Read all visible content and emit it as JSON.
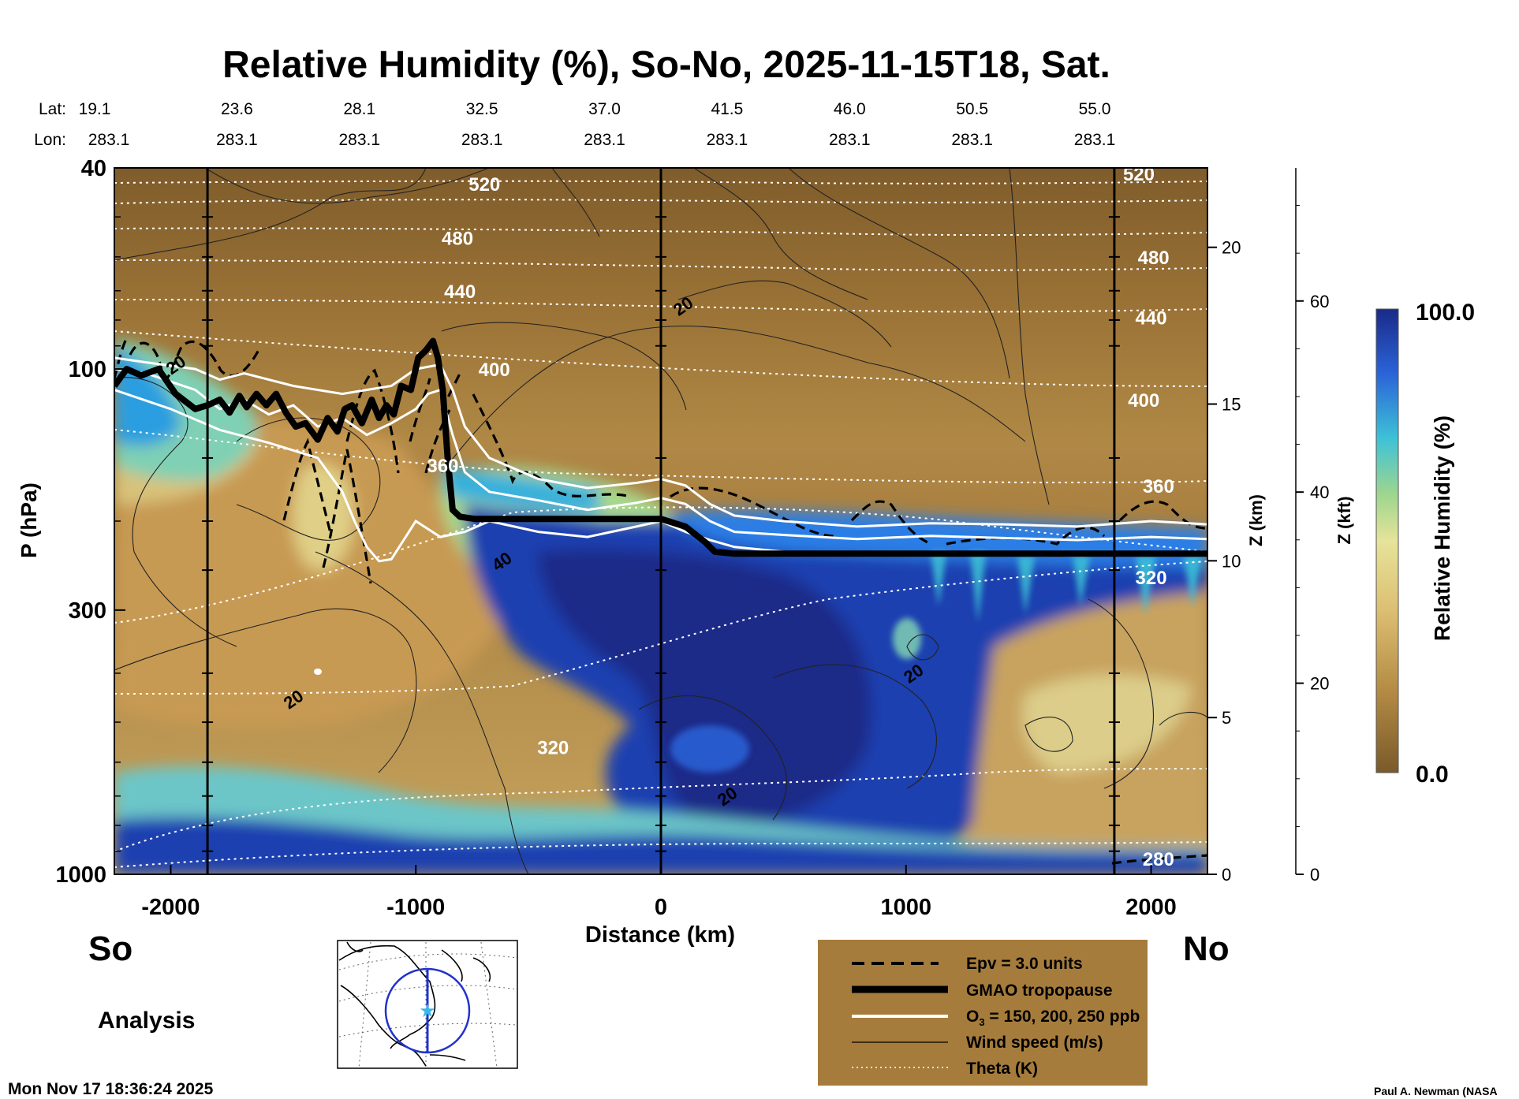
{
  "chart_data": {
    "type": "heatmap",
    "title": "Relative Humidity (%), So-No, 2025-11-15T18, Sat.",
    "xlabel": "Distance (km)",
    "ylabel": "P (hPa)",
    "right_axis_km_label": "Z (km)",
    "right_axis_kft_label": "Z (kft)",
    "colorbar_label": "Relative Humidity (%)",
    "colorbar_max_label": "100.0",
    "colorbar_min_label": "0.0",
    "xlim": [
      -2230,
      2230
    ],
    "ylim": [
      1000,
      40
    ],
    "x_ticks": [
      -2000,
      -1000,
      0,
      1000,
      2000
    ],
    "x_tick_labels": [
      "-2000",
      "-1000",
      "0",
      "1000",
      "2000"
    ],
    "p_ticks": [
      40,
      100,
      300,
      1000
    ],
    "p_tick_labels": [
      "40",
      "100",
      "300",
      "1000"
    ],
    "zkm_ticks": [
      0,
      5,
      10,
      15,
      20
    ],
    "zkm_tick_labels": [
      "0",
      "5",
      "10",
      "15",
      "20"
    ],
    "zkft_ticks": [
      0,
      20,
      40,
      60
    ],
    "zkft_tick_labels": [
      "0",
      "20",
      "40",
      "60"
    ],
    "lat_title": "Lat:",
    "lon_title": "Lon:",
    "lat_values": [
      "19.1",
      "23.6",
      "28.1",
      "32.5",
      "37.0",
      "41.5",
      "46.0",
      "50.5",
      "55.0"
    ],
    "lon_values": [
      "283.1",
      "283.1",
      "283.1",
      "283.1",
      "283.1",
      "283.1",
      "283.1",
      "283.1",
      "283.1"
    ],
    "latlon_distances": [
      -2230,
      -1730,
      -1230,
      -730,
      -230,
      270,
      770,
      1270,
      1770
    ],
    "vertical_markers": [
      -1850,
      0,
      1850
    ],
    "theta_labels": [
      {
        "text": "520",
        "x": -720,
        "p": 43
      },
      {
        "text": "480",
        "x": -830,
        "p": 55
      },
      {
        "text": "440",
        "x": -820,
        "p": 70
      },
      {
        "text": "400",
        "x": -680,
        "p": 100
      },
      {
        "text": "360",
        "x": -890,
        "p": 155
      },
      {
        "text": "320",
        "x": -440,
        "p": 560
      },
      {
        "text": "520",
        "x": 1950,
        "p": 41
      },
      {
        "text": "480",
        "x": 2010,
        "p": 60
      },
      {
        "text": "440",
        "x": 2000,
        "p": 79
      },
      {
        "text": "400",
        "x": 1970,
        "p": 115
      },
      {
        "text": "360",
        "x": 2030,
        "p": 170
      },
      {
        "text": "320",
        "x": 2000,
        "p": 258
      },
      {
        "text": "280",
        "x": 2030,
        "p": 930
      }
    ],
    "wind_labels": [
      {
        "text": "20",
        "x": -1980,
        "p": 98
      },
      {
        "text": "20",
        "x": 90,
        "p": 75
      },
      {
        "text": "40",
        "x": -650,
        "p": 240
      },
      {
        "text": "20",
        "x": -1500,
        "p": 450
      },
      {
        "text": "20",
        "x": 1030,
        "p": 400
      },
      {
        "text": "20",
        "x": 270,
        "p": 700
      }
    ],
    "tropopause": {
      "x": [
        -2230,
        -2180,
        -2120,
        -2050,
        -1980,
        -1900,
        -1850,
        -1800,
        -1760,
        -1720,
        -1690,
        -1650,
        -1610,
        -1570,
        -1530,
        -1490,
        -1450,
        -1400,
        -1360,
        -1320,
        -1290,
        -1260,
        -1220,
        -1180,
        -1150,
        -1120,
        -1090,
        -1060,
        -1020,
        -990,
        -960,
        -930,
        -910,
        -890,
        -870,
        -850,
        -820,
        -790,
        -760,
        -700,
        -500,
        -200,
        0,
        100,
        180,
        220,
        300,
        600,
        1000,
        1500,
        2000,
        2230
      ],
      "p": [
        108,
        100,
        103,
        100,
        112,
        120,
        118,
        115,
        122,
        113,
        119,
        112,
        118,
        112,
        122,
        130,
        128,
        138,
        125,
        133,
        120,
        118,
        128,
        115,
        125,
        118,
        123,
        108,
        110,
        95,
        92,
        88,
        95,
        110,
        150,
        190,
        196,
        197,
        198,
        198,
        198,
        198,
        198,
        205,
        220,
        230,
        232,
        232,
        232,
        232,
        232,
        232
      ]
    },
    "ozone_200": {
      "x": [
        -2230,
        -2100,
        -1900,
        -1800,
        -1700,
        -1600,
        -1500,
        -1400,
        -1300,
        -1200,
        -1100,
        -1000,
        -950,
        -900,
        -850,
        -800,
        -700,
        -500,
        -300,
        -100,
        0,
        100,
        200,
        300,
        500,
        800,
        1100,
        1400,
        1700,
        2000,
        2230
      ],
      "p": [
        100,
        102,
        110,
        120,
        115,
        123,
        118,
        130,
        125,
        135,
        128,
        120,
        112,
        110,
        135,
        160,
        175,
        182,
        190,
        184,
        180,
        185,
        200,
        210,
        213,
        217,
        214,
        216,
        218,
        215,
        217
      ]
    },
    "ozone_150": {
      "x": [
        -2230,
        -2100,
        -1900,
        -1800,
        -1700,
        -1500,
        -1300,
        -1100,
        -1000,
        -900,
        -850,
        -800,
        -700,
        -500,
        -300,
        -100,
        0,
        100,
        200,
        300,
        500,
        800,
        1100,
        1400,
        1700,
        2000,
        2230
      ],
      "p": [
        95,
        97,
        100,
        105,
        102,
        108,
        112,
        108,
        100,
        98,
        110,
        130,
        150,
        165,
        172,
        168,
        165,
        170,
        185,
        195,
        200,
        205,
        202,
        203,
        205,
        200,
        203
      ]
    },
    "ozone_250": {
      "x": [
        -2230,
        -2000,
        -1800,
        -1600,
        -1400,
        -1300,
        -1250,
        -1200,
        -1150,
        -1100,
        -1000,
        -900,
        -800,
        -700,
        -500,
        -300,
        -100,
        0,
        100,
        200,
        300,
        500,
        800,
        1100,
        1400,
        1700,
        2000,
        2230
      ],
      "p": [
        110,
        120,
        132,
        140,
        150,
        175,
        200,
        225,
        240,
        238,
        200,
        215,
        210,
        200,
        210,
        215,
        205,
        200,
        210,
        218,
        225,
        230,
        232,
        232,
        233,
        234,
        233,
        233
      ]
    },
    "legend": [
      {
        "label": "Epv = 3.0 units",
        "style": "dashed"
      },
      {
        "label": "GMAO tropopause",
        "style": "thick"
      },
      {
        "label": "O",
        "sub": "3",
        "suffix": " = 150, 200, 250 ppb",
        "style": "white"
      },
      {
        "label": "Wind speed (m/s)",
        "style": "thin"
      },
      {
        "label": "Theta (K)",
        "style": "dotted"
      }
    ],
    "legend_placement": "bottom-right"
  },
  "labels": {
    "south": "So",
    "north": "No",
    "analysis": "Analysis",
    "timestamp": "Mon Nov 17 18:36:24 2025",
    "credit": "Paul A. Newman (NASA"
  },
  "colors": {
    "tan_dark": "#8a6630",
    "tan": "#b58c45",
    "tan_light": "#dcbf72",
    "pale": "#e6e39a",
    "green": "#9ed68e",
    "cyan": "#3ec2d6",
    "blue": "#2a64d8",
    "navy": "#1a2a88",
    "legend_bg": "#a67c3c"
  }
}
